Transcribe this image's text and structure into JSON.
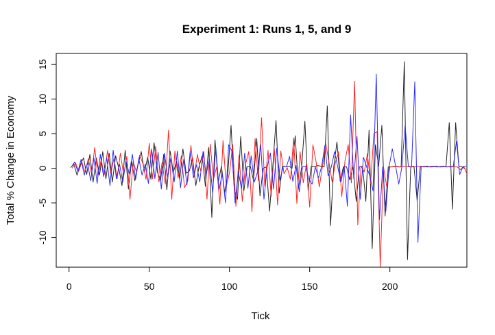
{
  "chart_data": {
    "type": "line",
    "title": "Experiment 1: Runs 1, 5, and 9",
    "xlabel": "Tick",
    "ylabel": "Total % Change in Economy",
    "xlim": [
      -8,
      248
    ],
    "ylim": [
      -14.3,
      16.6
    ],
    "x_ticks": [
      0,
      50,
      100,
      150,
      200
    ],
    "y_ticks": [
      -10,
      -5,
      0,
      5,
      10,
      15
    ],
    "grid": false,
    "legend": "none",
    "series": [
      {
        "color": "#222222",
        "x": [
          1,
          3,
          5,
          7,
          9,
          11,
          13,
          15,
          17,
          19,
          21,
          23,
          25,
          27,
          29,
          31,
          33,
          35,
          37,
          39,
          41,
          43,
          45,
          47,
          49,
          51,
          53,
          55,
          57,
          59,
          61,
          63,
          65,
          67,
          69,
          71,
          73,
          75,
          77,
          79,
          81,
          83,
          85,
          87,
          89,
          91,
          93,
          95,
          97,
          99,
          101,
          103,
          105,
          107,
          109,
          111,
          113,
          115,
          117,
          119,
          121,
          123,
          125,
          127,
          129,
          131,
          133,
          135,
          137,
          139,
          141,
          143,
          145,
          147,
          149,
          151,
          153,
          155,
          157,
          159,
          161,
          163,
          165,
          167,
          169,
          171,
          173,
          175,
          177,
          179,
          181,
          183,
          185,
          187,
          189,
          191,
          193,
          195,
          197,
          199,
          201,
          203,
          205,
          207,
          209,
          211,
          213,
          215,
          217,
          219,
          221,
          223,
          225,
          227,
          229,
          231,
          233,
          235,
          237,
          239,
          241,
          243,
          245,
          247
        ],
        "y": [
          0.1,
          0.6,
          -1.0,
          0.5,
          1.5,
          -0.9,
          2.0,
          -2.0,
          1.5,
          -1.0,
          2.4,
          -1.5,
          2.2,
          -2.0,
          1.8,
          0.0,
          -2.5,
          2.6,
          -3.0,
          1.0,
          -1.8,
          0.5,
          2.4,
          -0.5,
          1.6,
          -1.6,
          3.7,
          -0.5,
          -1.8,
          2.0,
          -3.1,
          2.5,
          -0.6,
          1.0,
          -1.6,
          2.8,
          -0.7,
          -0.4,
          1.5,
          -2.5,
          0.2,
          1.8,
          -2.6,
          3.0,
          -7.1,
          4.1,
          -2.0,
          0.3,
          -3.5,
          -0.7,
          6.2,
          -3.0,
          -4.5,
          4.6,
          -3.2,
          0.2,
          0.3,
          -1.8,
          4.3,
          -4.0,
          0.0,
          0.2,
          -6.2,
          0.3,
          6.9,
          -3.6,
          0.3,
          0.2,
          0.3,
          0.0,
          4.7,
          -2.9,
          0.2,
          6.8,
          -3.2,
          0.3,
          0.2,
          0.4,
          0.3,
          0.2,
          9.0,
          -8.3,
          0.2,
          3.8,
          -1.9,
          0.2,
          0.2,
          -1.7,
          0.3,
          -4.8,
          0.2,
          0.3,
          -4.8,
          5.5,
          -11.6,
          3.4,
          0.3,
          6.2,
          -6.9,
          0.2,
          0.2,
          0.3,
          0.2,
          0.2,
          15.4,
          -13.2,
          0.2,
          0.3,
          -4.7,
          0.3,
          0.2,
          0.3,
          0.2,
          0.2,
          0.3,
          0.2,
          0.2,
          0.3,
          6.6,
          -5.9,
          6.6,
          0.3,
          0.2,
          -0.1
        ]
      },
      {
        "color": "#ff2020",
        "x": [
          2,
          4,
          6,
          8,
          10,
          12,
          14,
          16,
          18,
          20,
          22,
          24,
          26,
          28,
          30,
          32,
          34,
          36,
          38,
          40,
          42,
          44,
          46,
          48,
          50,
          52,
          54,
          56,
          58,
          60,
          62,
          64,
          66,
          68,
          70,
          72,
          74,
          76,
          78,
          80,
          82,
          84,
          86,
          88,
          90,
          92,
          94,
          96,
          98,
          100,
          102,
          104,
          106,
          108,
          110,
          112,
          114,
          116,
          118,
          120,
          122,
          124,
          126,
          128,
          130,
          132,
          134,
          136,
          138,
          140,
          142,
          144,
          146,
          148,
          150,
          152,
          154,
          156,
          158,
          160,
          162,
          164,
          166,
          168,
          170,
          172,
          174,
          176,
          178,
          180,
          182,
          184,
          186,
          188,
          190,
          192,
          194,
          196,
          198,
          200,
          202,
          204,
          206,
          208,
          210,
          212,
          214,
          216,
          218,
          220,
          222,
          224,
          226,
          228,
          230,
          232,
          234,
          236,
          238,
          240,
          242,
          244,
          246,
          248
        ],
        "y": [
          0.0,
          0.8,
          -0.4,
          0.9,
          -0.6,
          1.4,
          -0.8,
          3.0,
          -1.2,
          1.2,
          -0.9,
          2.6,
          -0.8,
          1.5,
          -1.5,
          2.2,
          -1.0,
          1.7,
          -4.5,
          0.9,
          -0.5,
          1.9,
          0.7,
          -1.6,
          3.6,
          -1.5,
          3.2,
          -2.0,
          0.8,
          -2.3,
          5.5,
          -4.5,
          2.5,
          -1.4,
          1.8,
          -2.8,
          -1.8,
          3.3,
          -1.2,
          2.0,
          -0.4,
          2.4,
          -4.5,
          3.5,
          -1.6,
          0.2,
          -5.2,
          4.0,
          -2.6,
          -0.7,
          3.4,
          -5.5,
          1.9,
          -4.8,
          0.6,
          2.4,
          -6.3,
          4.3,
          -1.8,
          7.3,
          -2.6,
          2.6,
          -4.1,
          2.8,
          -5.3,
          2.5,
          -0.8,
          0.1,
          -1.6,
          4.4,
          -5.1,
          2.4,
          -2.1,
          0.6,
          -5.6,
          3.4,
          0.9,
          -2.7,
          0.3,
          3.6,
          0.9,
          -2.0,
          0.8,
          2.4,
          -4.1,
          1.1,
          3.4,
          -2.1,
          12.6,
          -8.2,
          0.3,
          -0.5,
          2.1,
          -2.2,
          5.0,
          5.3,
          -14.3,
          0.2,
          -2.6,
          0.2,
          0.2,
          0.3,
          0.2,
          0.2,
          0.3,
          0.2,
          0.2,
          0.2,
          0.3,
          0.2,
          0.2,
          0.2,
          0.3,
          0.2,
          0.2,
          0.3,
          0.2,
          0.2,
          0.3,
          0.2,
          0.2,
          -0.2,
          0.3,
          -0.8
        ]
      },
      {
        "color": "#2a2aff",
        "x": [
          1.5,
          3.5,
          5.5,
          7.5,
          9.5,
          11.5,
          13.5,
          15.5,
          17.5,
          19.5,
          21.5,
          23.5,
          25.5,
          27.5,
          29.5,
          31.5,
          33.5,
          35.5,
          37.5,
          39.5,
          41.5,
          43.5,
          45.5,
          47.5,
          49.5,
          51.5,
          53.5,
          55.5,
          57.5,
          59.5,
          61.5,
          63.5,
          65.5,
          67.5,
          69.5,
          71.5,
          73.5,
          75.5,
          77.5,
          79.5,
          81.5,
          83.5,
          85.5,
          87.5,
          89.5,
          91.5,
          93.5,
          95.5,
          97.5,
          99.5,
          101.5,
          103.5,
          105.5,
          107.5,
          109.5,
          111.5,
          113.5,
          115.5,
          117.5,
          119.5,
          121.5,
          123.5,
          125.5,
          127.5,
          129.5,
          131.5,
          133.5,
          135.5,
          137.5,
          139.5,
          141.5,
          143.5,
          145.5,
          147.5,
          149.5,
          151.5,
          153.5,
          155.5,
          157.5,
          159.5,
          161.5,
          163.5,
          165.5,
          167.5,
          169.5,
          171.5,
          173.5,
          175.5,
          177.5,
          179.5,
          181.5,
          183.5,
          185.5,
          187.5,
          189.5,
          191.5,
          193.5,
          195.5,
          197.5,
          199.5,
          201.5,
          203.5,
          205.5,
          207.5,
          209.5,
          211.5,
          213.5,
          215.5,
          217.5,
          219.5,
          221.5,
          223.5,
          225.5,
          227.5,
          229.5,
          231.5,
          233.5,
          235.5,
          237.5,
          239.5,
          241.5,
          243.5,
          245.5,
          247.5
        ],
        "y": [
          0.2,
          0.9,
          -0.5,
          1.3,
          -1.0,
          0.8,
          -1.8,
          1.5,
          -2.2,
          2.0,
          -1.2,
          1.5,
          -2.5,
          2.6,
          -1.5,
          0.6,
          -2.0,
          1.1,
          -0.8,
          2.0,
          -1.6,
          1.4,
          -1.0,
          0.6,
          -2.2,
          2.8,
          -1.5,
          2.3,
          -3.0,
          2.2,
          -1.3,
          1.5,
          -2.0,
          2.5,
          -2.8,
          1.3,
          -2.4,
          2.5,
          -1.4,
          0.5,
          -2.0,
          2.4,
          -0.9,
          1.4,
          -3.5,
          3.0,
          -3.1,
          -0.8,
          -5.0,
          3.4,
          2.5,
          -5.0,
          -0.5,
          -3.0,
          2.2,
          -2.9,
          1.8,
          -2.0,
          -0.5,
          3.4,
          -4.5,
          0.2,
          2.2,
          -3.0,
          2.9,
          -1.7,
          0.3,
          0.2,
          1.7,
          -1.9,
          0.4,
          -3.4,
          0.2,
          0.3,
          -1.6,
          -2.3,
          0.2,
          -1.4,
          0.3,
          3.3,
          -1.1,
          0.2,
          2.4,
          0.2,
          -2.0,
          0.3,
          -5.5,
          7.7,
          -1.5,
          4.6,
          -4.5,
          1.6,
          0.2,
          -1.1,
          -3.3,
          13.6,
          -7.4,
          0.2,
          -6.2,
          0.2,
          2.8,
          0.4,
          -2.3,
          0.2,
          6.2,
          0.3,
          0.2,
          12.5,
          -10.7,
          0.2,
          0.3,
          0.2,
          0.2,
          0.3,
          0.2,
          0.2,
          0.3,
          0.2,
          0.2,
          0.2,
          3.9,
          -0.9,
          0.2,
          0.3
        ]
      }
    ]
  }
}
